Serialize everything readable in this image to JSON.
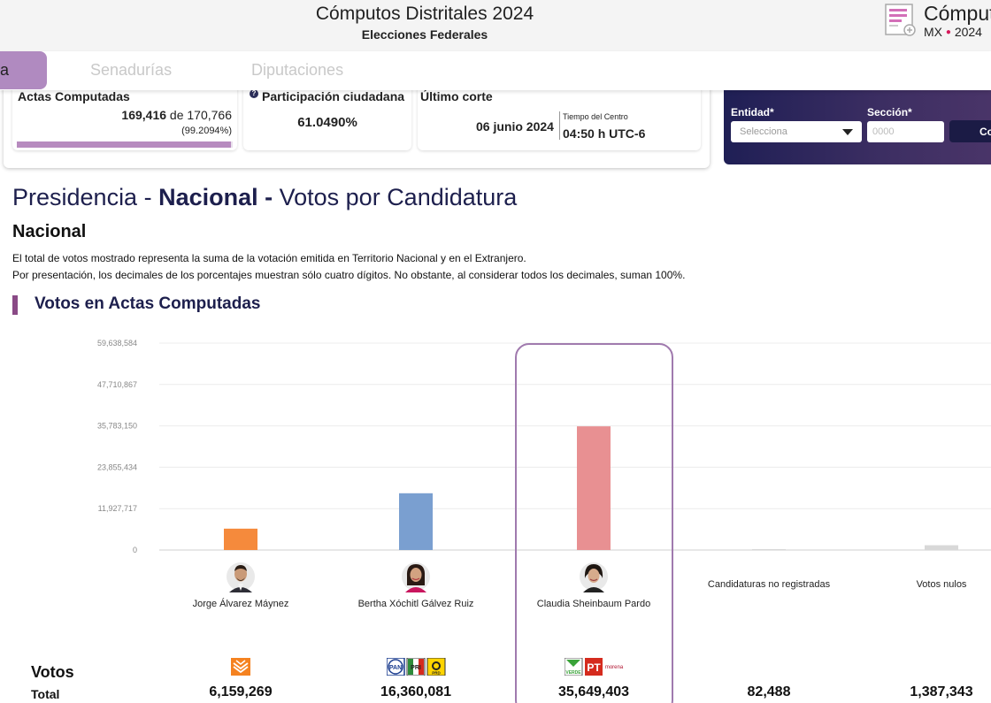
{
  "header": {
    "title": "Cómputos Distritales 2024",
    "subtitle": "Elecciones Federales",
    "brand_name": "Cómputos",
    "brand_country": "MX",
    "brand_year": "2024"
  },
  "tabs": [
    {
      "label": "a",
      "active": true
    },
    {
      "label": "Senadurías",
      "active": false
    },
    {
      "label": "Diputaciones",
      "active": false
    }
  ],
  "summary": {
    "actas": {
      "title": "Actas Computadas",
      "count": "169,416",
      "of_label": "de",
      "total": "170,766",
      "percent_text": "(99.2094%)",
      "progress_fraction": 0.992094
    },
    "participacion": {
      "title": "Participación ciudadana",
      "value": "61.0490%"
    },
    "corte": {
      "title": "Último corte",
      "date": "06 junio 2024",
      "tz_label": "Tiempo del Centro",
      "time": "04:50 h UTC-6"
    }
  },
  "search": {
    "entidad_label": "Entidad*",
    "entidad_placeholder": "Selecciona",
    "seccion_label": "Sección*",
    "seccion_placeholder": "0000",
    "button_label": "Co"
  },
  "page": {
    "title_prefix": "Presidencia - ",
    "title_bold": "Nacional - ",
    "title_suffix": "Votos por Candidatura",
    "subheading": "Nacional",
    "note1": "El total de votos mostrado representa la suma de la votación emitida en Territorio Nacional y en el Extranjero.",
    "note2": "Por presentación, los decimales de los porcentajes muestran sólo cuatro dígitos. No obstante, al considerar todos los decimales, suman 100%.",
    "chart_heading": "Votos en Actas Computadas",
    "votos_label": "Votos",
    "total_label": "Total"
  },
  "chart_data": {
    "type": "bar",
    "title": "Votos en Actas Computadas",
    "categories": [
      "Jorge Álvarez Máynez",
      "Bertha Xóchitl Gálvez Ruiz",
      "Claudia Sheinbaum Pardo",
      "Candidaturas no registradas",
      "Votos nulos"
    ],
    "values": [
      6159269,
      16360081,
      35649403,
      82488,
      1387343
    ],
    "colors": [
      "#f58a3c",
      "#7a9fd0",
      "#e89092",
      "#d8d8d8",
      "#d8d8d8"
    ],
    "ylim": [
      0,
      59638584
    ],
    "yticks": [
      "0",
      "11,927,717",
      "23,855,434",
      "35,783,150",
      "47,710,867",
      "59,638,584"
    ],
    "highlighted_category": "Claudia Sheinbaum Pardo",
    "grid": true
  },
  "candidates": [
    {
      "name": "Jorge Álvarez Máynez",
      "total": "6,159,269",
      "parties": [
        "MC"
      ],
      "photo": "avatar-man"
    },
    {
      "name": "Bertha Xóchitl Gálvez Ruiz",
      "total": "16,360,081",
      "parties": [
        "PAN",
        "PRI",
        "PRD"
      ],
      "photo": "avatar-woman"
    },
    {
      "name": "Claudia Sheinbaum Pardo",
      "total": "35,649,403",
      "parties": [
        "VERDE",
        "PT",
        "morena"
      ],
      "photo": "avatar-woman"
    },
    {
      "name": "Candidaturas no registradas",
      "total": "82,488"
    },
    {
      "name": "Votos nulos",
      "total": "1,387,343"
    }
  ]
}
